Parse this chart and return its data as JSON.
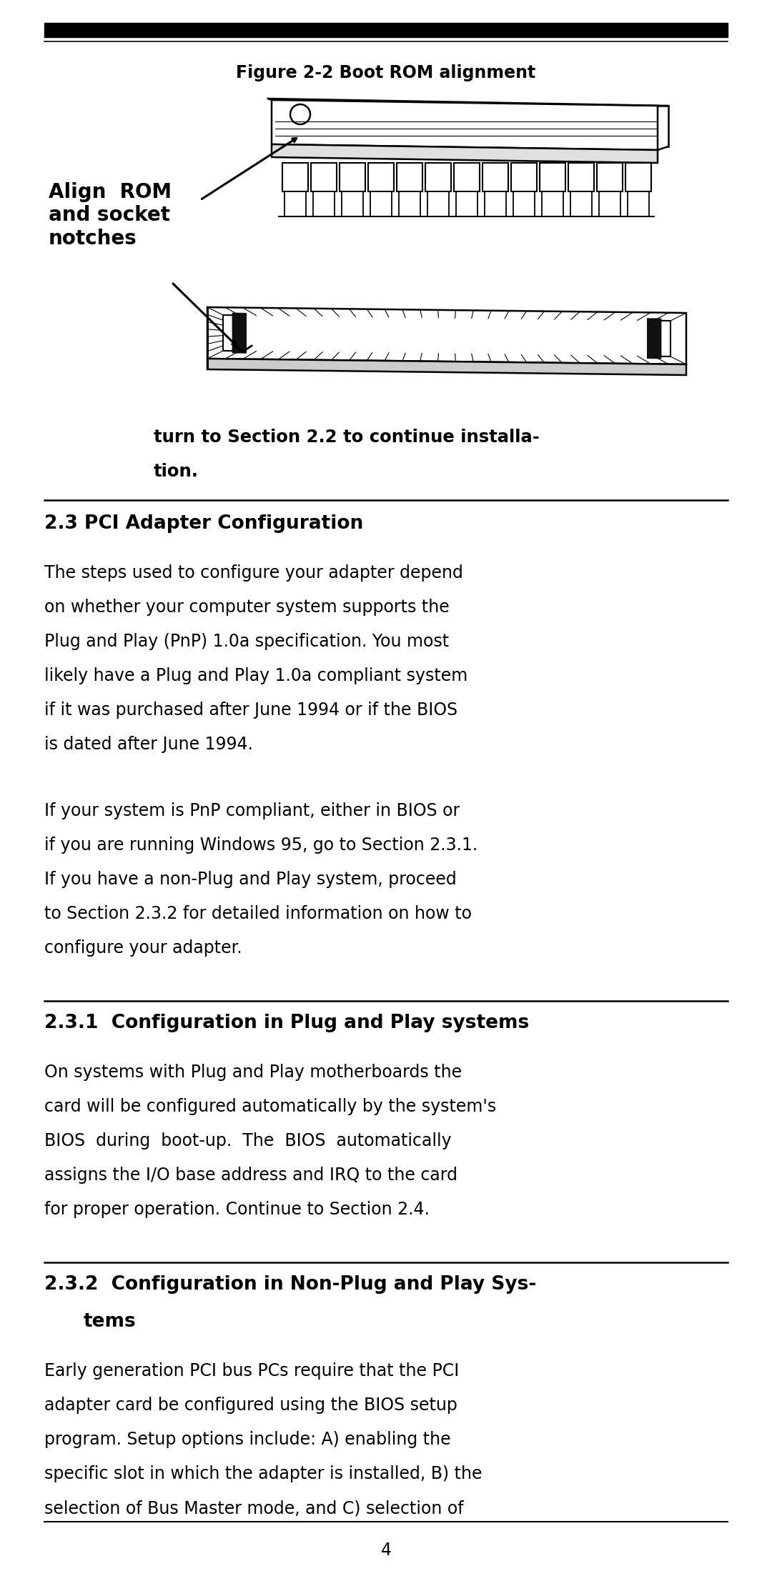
{
  "bg_color": "#ffffff",
  "text_color": "#000000",
  "page_number": "4",
  "figure_caption": "Figure 2-2 Boot ROM alignment",
  "label_align_rom": "Align  ROM\nand socket\nnotches",
  "section_23_title": "2.3 PCI Adapter Configuration",
  "section_23_para1_lines": [
    "The steps used to configure your adapter depend",
    "on whether your computer system supports the",
    "Plug and Play (PnP) 1.0a specification. You most",
    "likely have a Plug and Play 1.0a compliant system",
    "if it was purchased after June 1994 or if the BIOS",
    "is dated after June 1994."
  ],
  "section_23_para2_lines": [
    "If your system is PnP compliant, either in BIOS or",
    "if you are running Windows 95, go to Section 2.3.1.",
    "If you have a non-Plug and Play system, proceed",
    "to Section 2.3.2 for detailed information on how to",
    "configure your adapter."
  ],
  "section_231_title": "2.3.1  Configuration in Plug and Play systems",
  "section_231_para_lines": [
    "On systems with Plug and Play motherboards the",
    "card will be configured automatically by the system's",
    "BIOS  during  boot-up.  The  BIOS  automatically",
    "assigns the I/O base address and IRQ to the card",
    "for proper operation. Continue to Section 2.4."
  ],
  "section_232_title1": "2.3.2  Configuration in Non-Plug and Play Sys-",
  "section_232_title2": "     tems",
  "section_232_para_lines": [
    "Early generation PCI bus PCs require that the PCI",
    "adapter card be configured using the BIOS setup",
    "program. Setup options include: A) enabling the",
    "specific slot in which the adapter is installed, B) the",
    "selection of Bus Master mode, and C) selection of"
  ],
  "turn_to_line1": "turn to Section 2.2 to continue installa-",
  "turn_to_line2": "tion."
}
